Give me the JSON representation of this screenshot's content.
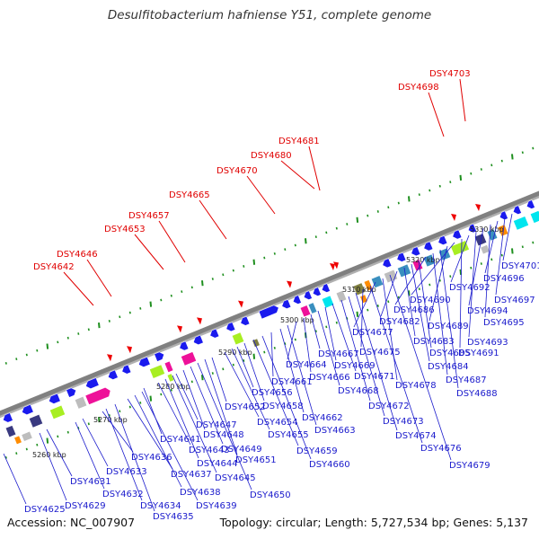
{
  "title": "Desulfitobacterium hafniense Y51, complete genome",
  "accession": "Accession: NC_007907",
  "summary": "Topology: circular; Length: 5,727,534 bp; Genes: 5,137",
  "colors": {
    "backbone": "#808080",
    "forward_gene": "#1a1aee",
    "top_label": "#e00000",
    "bottom_label": "#1a1acc",
    "tick": "#1e8f1e",
    "magenta": "#ee1199",
    "lime": "#a8ee22",
    "gray": "#bdbdbd",
    "navy": "#3a3a80",
    "teal": "#3a8fbf",
    "cyan": "#00e5ee",
    "orange": "#ff8c00",
    "olive": "#808040"
  },
  "scale_labels": [
    "5260 kbp",
    "5270 kbp",
    "5280 kbp",
    "5290 kbp",
    "5300 kbp",
    "5310 kbp",
    "5320 kbp",
    "5330 kbp"
  ],
  "top_labels": [
    "DSY4642",
    "DSY4646",
    "DSY4653",
    "DSY4657",
    "DSY4665",
    "DSY4670",
    "DSY4680",
    "DSY4681",
    "DSY4698",
    "DSY4703"
  ],
  "bottom_labels": [
    "DSY4625",
    "DSY4629",
    "DSY4631",
    "DSY4632",
    "DSY4633",
    "DSY4634",
    "DSY4635",
    "DSY4636",
    "DSY4637",
    "DSY4638",
    "DSY4639",
    "DSY4641",
    "DSY4643",
    "DSY4644",
    "DSY4645",
    "DSY4647",
    "DSY4648",
    "DSY4649",
    "DSY4650",
    "DSY4651",
    "DSY4652",
    "DSY4654",
    "DSY4655",
    "DSY4656",
    "DSY4658",
    "DSY4659",
    "DSY4660",
    "DSY4661",
    "DSY4662",
    "DSY4663",
    "DSY4664",
    "DSY4666",
    "DSY4667",
    "DSY4668",
    "DSY4669",
    "DSY4671",
    "DSY4672",
    "DSY4673",
    "DSY4674",
    "DSY4675",
    "DSY4676",
    "DSY4677",
    "DSY4678",
    "DSY4679",
    "DSY4682",
    "DSY4683",
    "DSY4684",
    "DSY4685",
    "DSY4686",
    "DSY4687",
    "DSY4688",
    "DSY4689",
    "DSY4690",
    "DSY4691",
    "DSY4692",
    "DSY4693",
    "DSY4694",
    "DSY4695",
    "DSY4696",
    "DSY4697",
    "DSY4701"
  ]
}
